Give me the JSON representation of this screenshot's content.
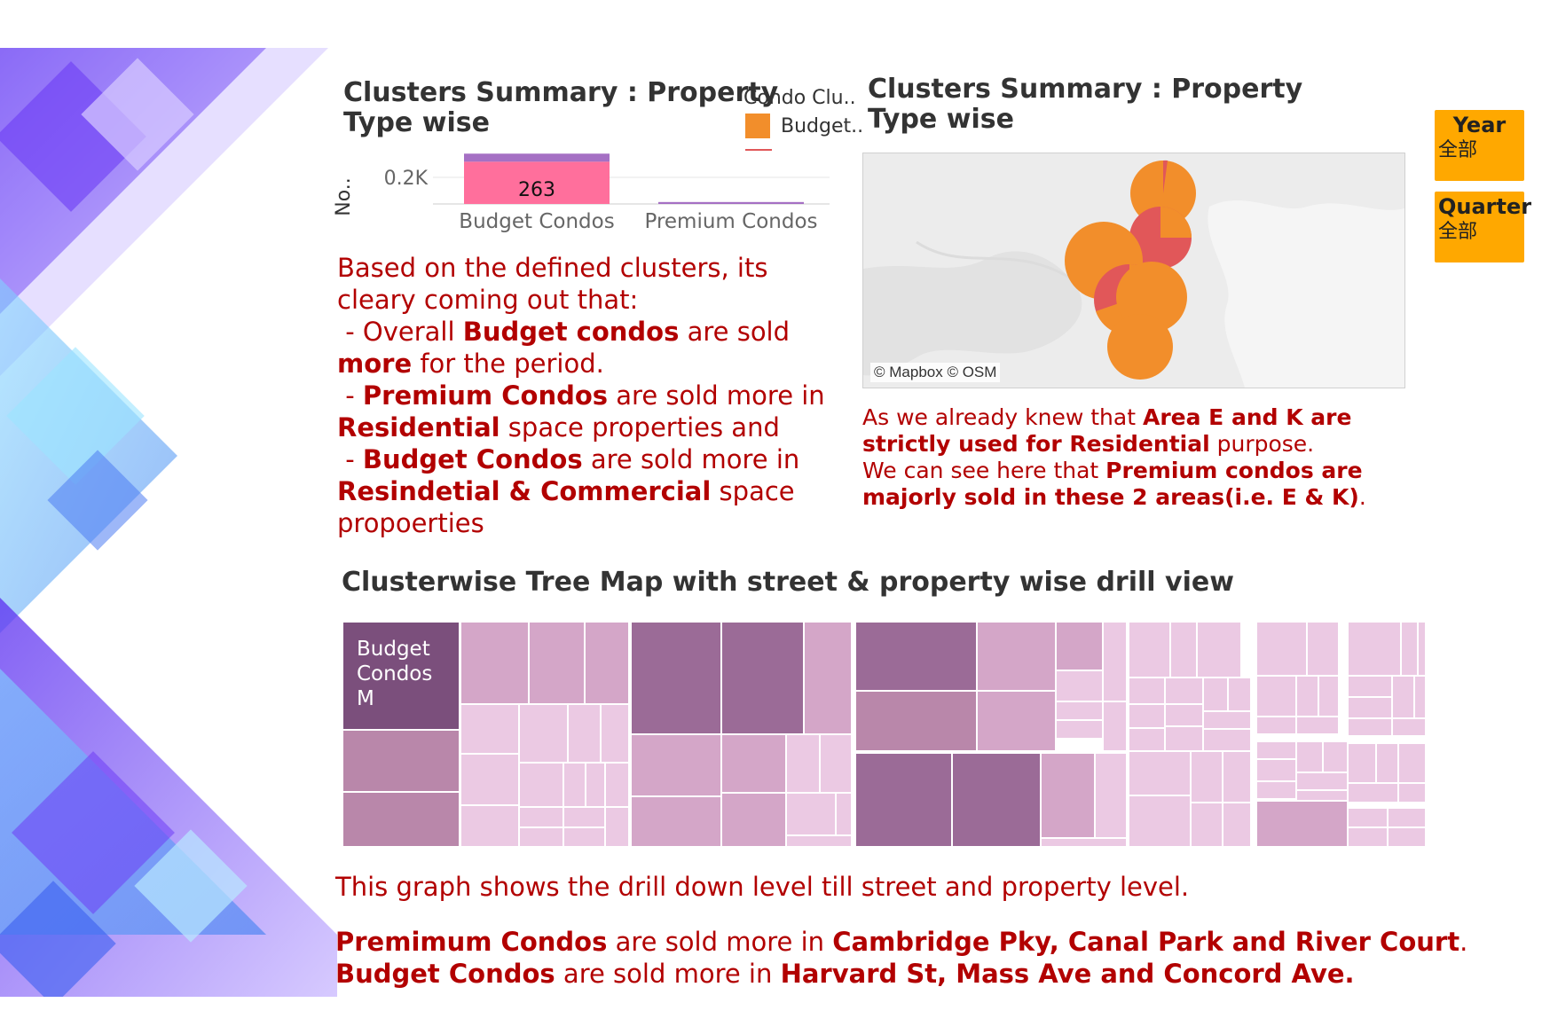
{
  "bar_section": {
    "title": "Clusters Summary : Property Type wise",
    "axis_label": "No..",
    "legend": {
      "title": "Condo Clu..",
      "items": [
        {
          "label": "Budget..",
          "color": "#f28e2b"
        }
      ]
    }
  },
  "map_section": {
    "title": "Clusters Summary : Property Type wise",
    "credit": "© Mapbox © OSM",
    "colors": {
      "budget": "#f28e2b",
      "premium": "#e15759"
    }
  },
  "filters": [
    {
      "label": "Year",
      "value": "全部"
    },
    {
      "label": "Quarter",
      "value": "全部"
    }
  ],
  "left_note": {
    "l1": "Based on the defined clusters, its",
    "l2": "cleary coming out that:",
    "l3a": " - Overall ",
    "l3b": "Budget condos",
    "l3c": " are sold",
    "l4a": "more",
    "l4b": " for the period.",
    "l5a": " - ",
    "l5b": "Premium Condos",
    "l5c": " are sold more in",
    "l6a": "Residential",
    "l6b": " space properties and",
    "l7a": " - ",
    "l7b": "Budget Condos",
    "l7c": " are sold more in",
    "l8a": "Resindetial & Commercial",
    "l8b": " space",
    "l9": "propoerties"
  },
  "map_note": {
    "l1a": "As we already knew that ",
    "l1b": "Area E and K are",
    "l2a": "strictly used for Residential",
    "l2b": " purpose.",
    "l3a": "We can see here that ",
    "l3b": "Premium condos are",
    "l4a": "majorly sold in these 2 areas(i.e. E & K)",
    "l4b": "."
  },
  "treemap_section": {
    "title": "Clusterwise Tree Map with street & property wise drill view",
    "first_label_lines": [
      "Budget",
      "Condos",
      "M"
    ],
    "colors": [
      "#7b4f7c",
      "#9b6b97",
      "#b987aa",
      "#d4a6c8",
      "#ebc9e3"
    ]
  },
  "bottom_note": {
    "l1": "This graph shows the drill down level till street and property level.",
    "l2a": "Premimum Condos",
    "l2b": " are sold more in ",
    "l2c": "Cambridge Pky, Canal Park and River Court",
    "l2d": ".",
    "l3a": "Budget Condos",
    "l3b": " are sold more in ",
    "l3c": "Harvard St, Mass Ave and Concord Ave."
  },
  "chart_data": {
    "type": "bar",
    "categories": [
      "Budget Condos",
      "Premium Condos"
    ],
    "series": [
      {
        "name": "Budget..",
        "values": [
          263,
          0
        ],
        "color": "#ff6f9c"
      },
      {
        "name": "",
        "values": [
          50,
          12
        ],
        "color": "#a570c4"
      }
    ],
    "ylabel": "No..",
    "yticks": [
      "0.2K"
    ],
    "ylim": [
      0,
      320
    ],
    "data_labels": [
      "263",
      ""
    ],
    "legend_position": "top-right"
  }
}
